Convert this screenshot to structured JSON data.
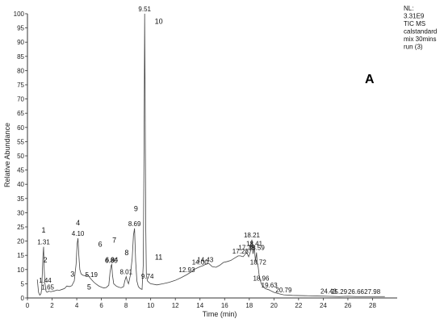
{
  "chart_data": {
    "type": "line",
    "title": "",
    "xlabel": "Time (min)",
    "ylabel": "Relative Abundance",
    "xlim": [
      0,
      30
    ],
    "ylim": [
      0,
      100
    ],
    "x_ticks": [
      0,
      2,
      4,
      6,
      8,
      10,
      12,
      14,
      16,
      18,
      20,
      22,
      24,
      26,
      28
    ],
    "y_ticks": [
      0,
      5,
      10,
      15,
      20,
      25,
      30,
      35,
      40,
      45,
      50,
      55,
      60,
      65,
      70,
      75,
      80,
      85,
      90,
      95,
      100
    ],
    "grid": false,
    "line_color": "#444444",
    "series": [
      {
        "x": [
          0.8,
          0.9,
          1.0,
          1.1,
          1.15,
          1.2,
          1.25,
          1.31,
          1.36,
          1.42,
          1.44,
          1.5,
          1.58,
          1.65,
          1.72,
          1.8,
          1.9,
          2.0,
          2.2,
          2.4,
          2.6,
          2.8,
          3.0,
          3.2,
          3.4,
          3.6,
          3.8,
          3.95,
          4.03,
          4.1,
          4.17,
          4.25,
          4.35,
          4.5,
          4.7,
          4.9,
          5.0,
          5.19,
          5.4,
          5.6,
          5.8,
          6.0,
          6.2,
          6.4,
          6.6,
          6.7,
          6.8,
          6.84,
          6.9,
          7.0,
          7.2,
          7.4,
          7.6,
          7.8,
          7.9,
          8.01,
          8.1,
          8.2,
          8.35,
          8.5,
          8.6,
          8.69,
          8.78,
          8.88,
          9.0,
          9.1,
          9.2,
          9.3,
          9.4,
          9.47,
          9.51,
          9.55,
          9.6,
          9.65,
          9.74,
          9.85,
          10.0,
          10.5,
          11.0,
          11.5,
          12.0,
          12.5,
          12.93,
          13.3,
          13.6,
          14.0,
          14.2,
          14.43,
          14.7,
          15.0,
          15.3,
          15.6,
          15.9,
          16.2,
          16.5,
          16.8,
          17.1,
          17.28,
          17.5,
          17.78,
          17.95,
          18.1,
          18.21,
          18.3,
          18.41,
          18.5,
          18.59,
          18.65,
          18.72,
          18.8,
          18.88,
          18.96,
          19.1,
          19.3,
          19.5,
          19.63,
          19.8,
          20.0,
          20.3,
          20.79,
          21.5,
          22.5,
          23.5,
          24.43,
          25.29,
          26.0,
          26.66,
          27.3,
          27.98,
          28.5,
          29.0
        ],
        "y": [
          6.5,
          2.0,
          1.0,
          1.5,
          3.0,
          8.0,
          14.0,
          18.0,
          10.0,
          5.0,
          4.6,
          2.5,
          2.0,
          2.1,
          2.4,
          2.3,
          2.2,
          2.3,
          2.5,
          2.8,
          2.7,
          3.0,
          3.3,
          4.2,
          4.0,
          4.3,
          6.0,
          12.0,
          19.0,
          21.0,
          15.0,
          10.0,
          8.5,
          8.0,
          7.8,
          8.2,
          7.5,
          6.5,
          5.5,
          4.8,
          4.2,
          3.8,
          3.5,
          3.7,
          4.5,
          9.0,
          11.5,
          11.8,
          8.0,
          5.0,
          4.2,
          3.8,
          3.6,
          4.0,
          6.0,
          7.5,
          6.0,
          5.0,
          8.0,
          14.0,
          22.0,
          24.5,
          13.0,
          6.0,
          4.0,
          3.5,
          3.2,
          3.0,
          12.0,
          60.0,
          100.0,
          70.0,
          25.0,
          8.0,
          6.0,
          5.5,
          5.0,
          4.6,
          5.0,
          5.5,
          6.2,
          7.2,
          8.2,
          9.2,
          10.2,
          11.0,
          11.3,
          11.8,
          12.2,
          11.0,
          10.8,
          11.5,
          12.5,
          12.8,
          13.2,
          14.0,
          14.8,
          14.8,
          14.5,
          16.0,
          14.5,
          16.5,
          20.5,
          15.5,
          17.5,
          13.0,
          16.0,
          12.0,
          11.0,
          8.0,
          6.5,
          5.2,
          4.0,
          3.3,
          3.0,
          2.8,
          2.4,
          2.0,
          1.6,
          1.1,
          0.9,
          0.8,
          0.7,
          0.6,
          0.5,
          0.6,
          0.5,
          0.5,
          0.5,
          0.5,
          0.5
        ]
      }
    ],
    "peak_labels": [
      {
        "x": 1.31,
        "y": 18.0,
        "text": "1.31"
      },
      {
        "x": 1.44,
        "y": 4.6,
        "text": "1.44"
      },
      {
        "x": 1.65,
        "y": 2.1,
        "text": "1.65"
      },
      {
        "x": 4.1,
        "y": 21.0,
        "text": "4.10"
      },
      {
        "x": 5.19,
        "y": 6.5,
        "text": "5.19"
      },
      {
        "x": 6.8,
        "y": 11.5,
        "text": "6.80"
      },
      {
        "x": 6.84,
        "y": 11.8,
        "text": "6.84"
      },
      {
        "x": 8.01,
        "y": 7.5,
        "text": "8.01"
      },
      {
        "x": 8.69,
        "y": 24.5,
        "text": "8.69"
      },
      {
        "x": 9.51,
        "y": 100.0,
        "text": "9.51"
      },
      {
        "x": 9.74,
        "y": 6.0,
        "text": "9.74"
      },
      {
        "x": 12.93,
        "y": 8.2,
        "text": "12.93"
      },
      {
        "x": 14.0,
        "y": 11.0,
        "text": "14.00"
      },
      {
        "x": 14.43,
        "y": 11.8,
        "text": "14.43"
      },
      {
        "x": 17.28,
        "y": 14.8,
        "text": "17.28"
      },
      {
        "x": 17.78,
        "y": 16.0,
        "text": "17.78"
      },
      {
        "x": 18.21,
        "y": 20.5,
        "text": "18.21"
      },
      {
        "x": 18.41,
        "y": 17.5,
        "text": "18.41"
      },
      {
        "x": 18.59,
        "y": 16.0,
        "text": "18.59"
      },
      {
        "x": 18.72,
        "y": 11.0,
        "text": "18.72"
      },
      {
        "x": 18.96,
        "y": 5.2,
        "text": "18.96"
      },
      {
        "x": 19.63,
        "y": 2.8,
        "text": "19.63"
      },
      {
        "x": 20.79,
        "y": 1.1,
        "text": "20.79"
      },
      {
        "x": 24.43,
        "y": 0.7,
        "text": "24.43"
      },
      {
        "x": 25.29,
        "y": 0.6,
        "text": "25.29"
      },
      {
        "x": 26.66,
        "y": 0.6,
        "text": "26.66"
      },
      {
        "x": 27.98,
        "y": 0.5,
        "text": "27.98"
      }
    ],
    "compound_numbers": [
      {
        "x": 1.31,
        "y": 23.0,
        "text": "1"
      },
      {
        "x": 1.44,
        "y": 12.5,
        "text": "2"
      },
      {
        "x": 3.65,
        "y": 7.5,
        "text": "3"
      },
      {
        "x": 4.1,
        "y": 25.5,
        "text": "4"
      },
      {
        "x": 5.0,
        "y": 3.0,
        "text": "5"
      },
      {
        "x": 5.9,
        "y": 18.0,
        "text": "6"
      },
      {
        "x": 7.05,
        "y": 19.5,
        "text": "7"
      },
      {
        "x": 8.05,
        "y": 15.0,
        "text": "8"
      },
      {
        "x": 8.8,
        "y": 30.5,
        "text": "9"
      },
      {
        "x": 10.65,
        "y": 96.5,
        "text": "10"
      },
      {
        "x": 10.65,
        "y": 13.5,
        "text": "11"
      }
    ],
    "info_block": [
      "NL:",
      "3.31E9",
      "TIC  MS",
      "calstandard",
      "mix 30mins",
      "run (3)"
    ],
    "panel_label": "A"
  }
}
